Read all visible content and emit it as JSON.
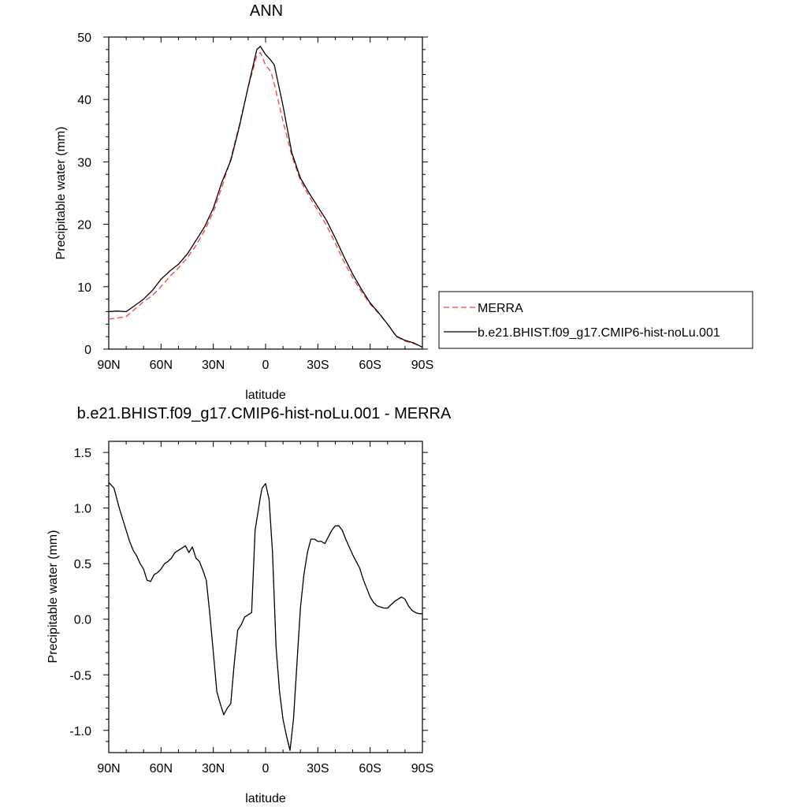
{
  "chart_data": [
    {
      "type": "line",
      "title": "ANN",
      "xlabel": "latitude",
      "ylabel": "Precipitable water (mm)",
      "xlim": [
        90,
        -90
      ],
      "ylim": [
        0,
        50
      ],
      "x_ticks": [
        {
          "value": 90,
          "label": "90N"
        },
        {
          "value": 60,
          "label": "60N"
        },
        {
          "value": 30,
          "label": "30N"
        },
        {
          "value": 0,
          "label": "0"
        },
        {
          "value": -30,
          "label": "30S"
        },
        {
          "value": -60,
          "label": "60S"
        },
        {
          "value": -90,
          "label": "90S"
        }
      ],
      "y_ticks": [
        {
          "value": 0,
          "label": "0"
        },
        {
          "value": 10,
          "label": "10"
        },
        {
          "value": 20,
          "label": "20"
        },
        {
          "value": 30,
          "label": "30"
        },
        {
          "value": 40,
          "label": "40"
        },
        {
          "value": 50,
          "label": "50"
        }
      ],
      "legend": "right",
      "series": [
        {
          "name": "MERRA",
          "color": "#ff3c3c",
          "dash": "dashed",
          "x": [
            90,
            85,
            80,
            75,
            70,
            65,
            60,
            55,
            50,
            45,
            40,
            35,
            30,
            25,
            20,
            15,
            10,
            5,
            3,
            0,
            -3,
            -5,
            -10,
            -15,
            -20,
            -25,
            -30,
            -35,
            -40,
            -45,
            -50,
            -55,
            -60,
            -65,
            -70,
            -75,
            -80,
            -85,
            -90
          ],
          "y": [
            4.8,
            5.0,
            5.2,
            6.4,
            7.6,
            8.6,
            10.0,
            11.6,
            13.0,
            14.6,
            16.6,
            19.0,
            22.0,
            26.0,
            30.5,
            36.0,
            42.0,
            47.0,
            47.5,
            45.5,
            44.5,
            42.5,
            36.5,
            31.0,
            27.0,
            24.5,
            22.2,
            19.8,
            17.0,
            14.0,
            11.4,
            9.2,
            7.2,
            5.7,
            4.0,
            2.0,
            1.3,
            0.9,
            0.3
          ]
        },
        {
          "name": "b.e21.BHIST.f09_g17.CMIP6-hist-noLu.001",
          "color": "#000000",
          "dash": "solid",
          "x": [
            90,
            85,
            80,
            75,
            70,
            65,
            60,
            55,
            50,
            45,
            40,
            35,
            30,
            25,
            20,
            15,
            10,
            5,
            3,
            0,
            -3,
            -5,
            -10,
            -15,
            -20,
            -25,
            -30,
            -35,
            -40,
            -45,
            -50,
            -55,
            -60,
            -65,
            -70,
            -75,
            -80,
            -85,
            -90
          ],
          "y": [
            6.0,
            6.1,
            6.0,
            7.0,
            8.0,
            9.4,
            11.2,
            12.5,
            13.6,
            15.2,
            17.4,
            19.6,
            22.6,
            26.8,
            30.2,
            35.7,
            42.0,
            48.0,
            48.5,
            47.2,
            46.3,
            45.5,
            39.0,
            31.5,
            27.4,
            25.0,
            22.8,
            20.6,
            17.8,
            14.8,
            12.0,
            9.6,
            7.4,
            5.8,
            4.0,
            2.1,
            1.4,
            1.0,
            0.3
          ]
        }
      ]
    },
    {
      "type": "line",
      "title": "b.e21.BHIST.f09_g17.CMIP6-hist-noLu.001 - MERRA",
      "xlabel": "latitude",
      "ylabel": "Precipitable water (mm)",
      "xlim": [
        90,
        -90
      ],
      "ylim": [
        -1.2,
        1.6
      ],
      "x_ticks": [
        {
          "value": 90,
          "label": "90N"
        },
        {
          "value": 60,
          "label": "60N"
        },
        {
          "value": 30,
          "label": "30N"
        },
        {
          "value": 0,
          "label": "0"
        },
        {
          "value": -30,
          "label": "30S"
        },
        {
          "value": -60,
          "label": "60S"
        },
        {
          "value": -90,
          "label": "90S"
        }
      ],
      "y_ticks": [
        {
          "value": -1.0,
          "label": "-1.0"
        },
        {
          "value": -0.5,
          "label": "-0.5"
        },
        {
          "value": 0.0,
          "label": "0.0"
        },
        {
          "value": 0.5,
          "label": "0.5"
        },
        {
          "value": 1.0,
          "label": "1.0"
        },
        {
          "value": 1.5,
          "label": "1.5"
        }
      ],
      "series": [
        {
          "color": "#000000",
          "dash": "solid",
          "x": [
            90,
            87,
            84,
            82,
            80,
            78,
            76,
            74,
            72,
            70,
            68,
            66,
            64,
            62,
            60,
            58,
            56,
            54,
            52,
            50,
            48,
            46,
            44,
            42,
            40,
            38,
            36,
            34,
            32,
            30,
            28,
            26,
            24,
            22,
            20,
            18,
            16,
            14,
            12,
            10,
            8,
            6,
            4,
            3,
            2,
            0,
            -2,
            -4,
            -6,
            -8,
            -10,
            -12,
            -14,
            -16,
            -18,
            -20,
            -22,
            -24,
            -26,
            -28,
            -30,
            -32,
            -34,
            -36,
            -38,
            -40,
            -42,
            -44,
            -46,
            -48,
            -50,
            -52,
            -54,
            -56,
            -58,
            -60,
            -62,
            -64,
            -66,
            -68,
            -70,
            -72,
            -74,
            -76,
            -78,
            -80,
            -82,
            -84,
            -86,
            -88,
            -90
          ],
          "y": [
            1.23,
            1.18,
            1.0,
            0.9,
            0.8,
            0.7,
            0.62,
            0.57,
            0.5,
            0.45,
            0.35,
            0.34,
            0.4,
            0.42,
            0.45,
            0.5,
            0.52,
            0.55,
            0.6,
            0.62,
            0.64,
            0.66,
            0.6,
            0.65,
            0.55,
            0.52,
            0.44,
            0.35,
            0.05,
            -0.3,
            -0.65,
            -0.76,
            -0.86,
            -0.8,
            -0.76,
            -0.4,
            -0.1,
            -0.05,
            0.02,
            0.04,
            0.06,
            0.8,
            1.0,
            1.1,
            1.18,
            1.22,
            1.08,
            0.6,
            -0.25,
            -0.65,
            -0.9,
            -1.05,
            -1.18,
            -0.9,
            -0.4,
            0.1,
            0.4,
            0.6,
            0.72,
            0.72,
            0.7,
            0.7,
            0.68,
            0.74,
            0.8,
            0.84,
            0.84,
            0.8,
            0.72,
            0.65,
            0.58,
            0.52,
            0.46,
            0.36,
            0.28,
            0.2,
            0.15,
            0.12,
            0.11,
            0.1,
            0.1,
            0.13,
            0.16,
            0.18,
            0.2,
            0.18,
            0.12,
            0.08,
            0.06,
            0.05,
            0.05
          ]
        }
      ]
    }
  ]
}
